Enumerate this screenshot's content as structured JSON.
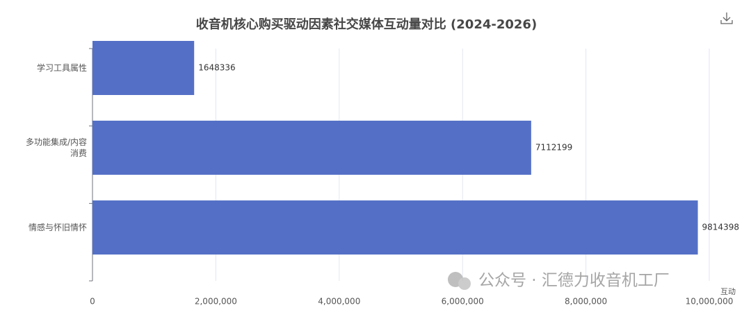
{
  "chart_data": {
    "type": "bar",
    "orientation": "horizontal",
    "title": "收音机核心购买驱动因素社交媒体互动量对比 (2024-2026)",
    "categories": [
      "学习工具属性",
      "多功能集成/内容消费",
      "情感与怀旧情怀"
    ],
    "values": [
      1648336,
      7112199,
      9814398
    ],
    "color": "#5470c6",
    "xlim": [
      0,
      10000000
    ],
    "xticks": [
      0,
      {
        "value": 2000000,
        "label": "2,000,000"
      },
      {
        "value": 4000000,
        "label": "4,000,000"
      },
      {
        "value": 6000000,
        "label": "6,000,000"
      },
      {
        "value": 8000000,
        "label": "8,000,000"
      },
      {
        "value": 10000000,
        "label": "10,000,000"
      }
    ],
    "x_label": "互动",
    "grid": true,
    "watermark": "公众号 · 汇德力收音机工厂"
  }
}
